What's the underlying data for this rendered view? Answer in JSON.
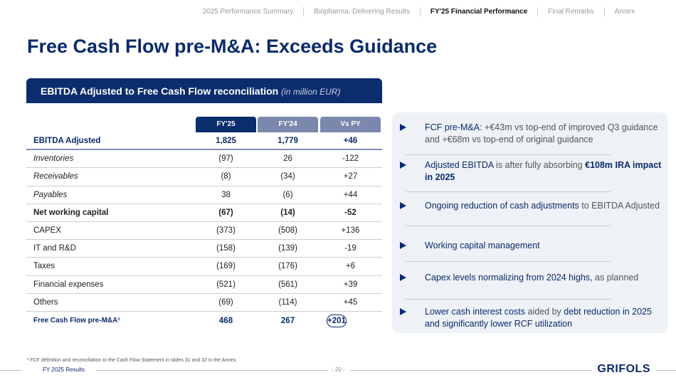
{
  "nav": [
    "2025 Performance Summary",
    "Biopharma: Delivering Results",
    "FY'25 Financial Performance",
    "Final Remarks",
    "Annex"
  ],
  "nav_active": 2,
  "title": "Free Cash Flow pre-M&A: Exceeds Guidance",
  "table": {
    "heading": "EBITDA Adjusted to Free Cash Flow reconciliation",
    "unit": "(in million EUR)",
    "columns": [
      "FY'25",
      "FY'24",
      "Vs PY"
    ],
    "column_colors": [
      "#0b2d6e",
      "#7a88ad",
      "#7a88ad"
    ],
    "rows": [
      {
        "label": "EBITDA Adjusted",
        "values": [
          "1,825",
          "1,779",
          "+46"
        ],
        "style": "bold"
      },
      {
        "label": "Inventories",
        "values": [
          "(97)",
          "26",
          "-122"
        ],
        "style": "italic"
      },
      {
        "label": "Receivables",
        "values": [
          "(8)",
          "(34)",
          "+27"
        ],
        "style": "italic"
      },
      {
        "label": "Payables",
        "values": [
          "38",
          "(6)",
          "+44"
        ],
        "style": "italic"
      },
      {
        "label": "Net working capital",
        "values": [
          "(67)",
          "(14)",
          "-52"
        ],
        "style": "bold-dark"
      },
      {
        "label": "CAPEX",
        "values": [
          "(373)",
          "(508)",
          "+136"
        ],
        "style": "normal"
      },
      {
        "label": "IT and R&D",
        "values": [
          "(158)",
          "(139)",
          "-19"
        ],
        "style": "normal"
      },
      {
        "label": "Taxes",
        "values": [
          "(169)",
          "(176)",
          "+6"
        ],
        "style": "normal"
      },
      {
        "label": "Financial expenses",
        "values": [
          "(521)",
          "(561)",
          "+39"
        ],
        "style": "normal"
      },
      {
        "label": "Others",
        "values": [
          "(69)",
          "(114)",
          "+45"
        ],
        "style": "normal"
      },
      {
        "label": "Free Cash Flow pre-M&A¹",
        "values": [
          "468",
          "267",
          "+201"
        ],
        "style": "bold"
      }
    ]
  },
  "bullets": [
    [
      {
        "t": "FCF pre-M&A:",
        "k": "b"
      },
      {
        "t": " +€43m vs top-end of improved Q3 guidance and +€68m vs top-end of original guidance",
        "k": "n"
      }
    ],
    [
      {
        "t": "Adjusted EBITDA",
        "k": "b"
      },
      {
        "t": " is after fully absorbing ",
        "k": "n"
      },
      {
        "t": "€108m IRA impact in 2025",
        "k": "s"
      }
    ],
    [
      {
        "t": "Ongoing reduction of cash adjustments",
        "k": "b"
      },
      {
        "t": " to EBITDA Adjusted",
        "k": "n"
      }
    ],
    [
      {
        "t": "Working capital management",
        "k": "b"
      }
    ],
    [
      {
        "t": "Capex levels normalizing from 2024 highs,",
        "k": "b"
      },
      {
        "t": " as planned",
        "k": "n"
      }
    ],
    [
      {
        "t": "Lower cash interest costs",
        "k": "b"
      },
      {
        "t": " aided by ",
        "k": "n"
      },
      {
        "t": "debt reduction in 2025 and significantly lower RCF utilization",
        "k": "b"
      }
    ]
  ],
  "footnote": "¹ FCF definition and reconciliation to the Cash Flow Statement in slides 31 and 32 in the Annex.",
  "footer": {
    "left": "FY 2025 Results",
    "page": "- 20 -",
    "logo": "GRIFOLS"
  }
}
